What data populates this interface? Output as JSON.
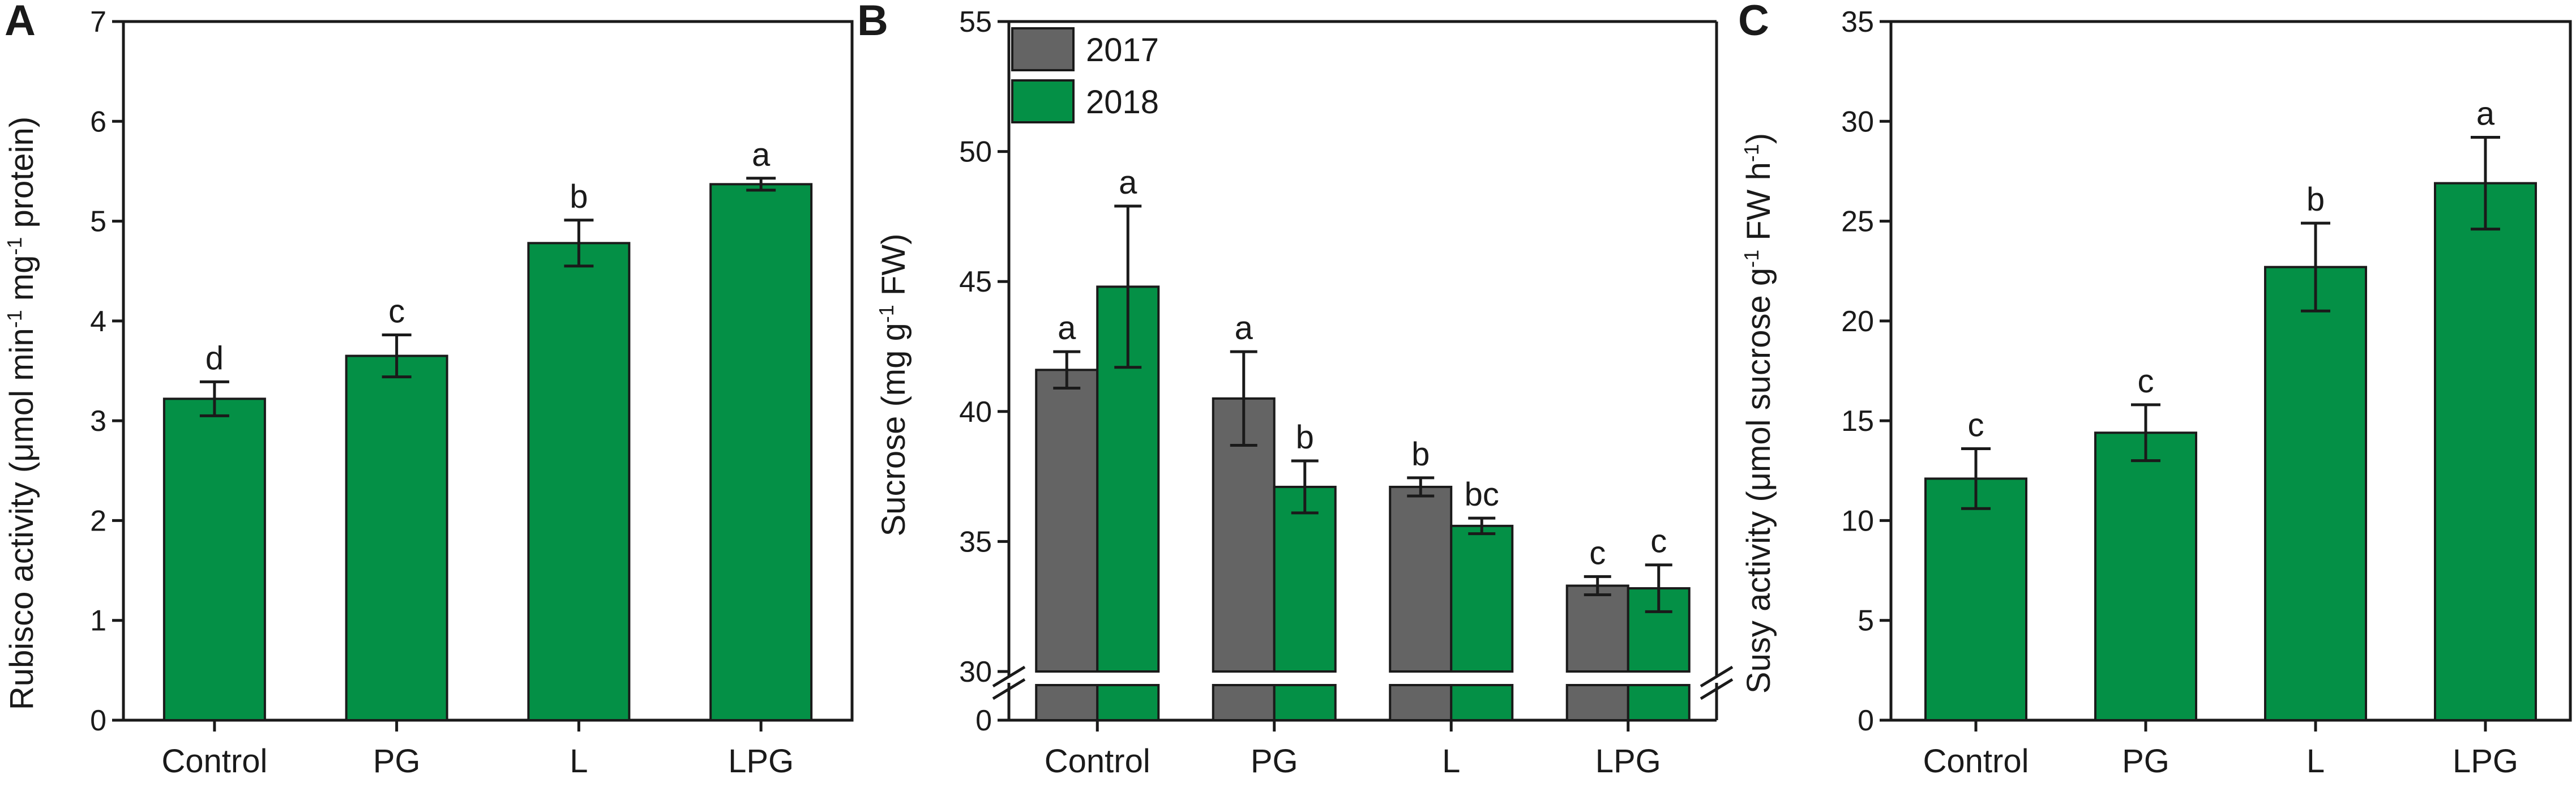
{
  "colors": {
    "green": "#049046",
    "grey": "#646464",
    "axis": "#1a1a1a"
  },
  "chart_data": [
    {
      "panel": "A",
      "type": "bar",
      "categories": [
        "Control",
        "PG",
        "L",
        "LPG"
      ],
      "values": [
        3.22,
        3.65,
        4.78,
        5.37
      ],
      "errors": [
        0.17,
        0.21,
        0.23,
        0.06
      ],
      "letters": [
        "d",
        "c",
        "b",
        "a"
      ],
      "ylabel_main": "Rubisco activity (μmol min",
      "ylabel_sup1": "-1",
      "ylabel_mid": " mg",
      "ylabel_sup2": "-1",
      "ylabel_end": " protein)",
      "ylim": [
        0,
        7
      ],
      "yticks": [
        0,
        1,
        2,
        3,
        4,
        5,
        6,
        7
      ]
    },
    {
      "panel": "B",
      "type": "bar",
      "categories": [
        "Control",
        "PG",
        "L",
        "LPG"
      ],
      "series": [
        {
          "name": "2017",
          "values": [
            41.6,
            40.5,
            37.1,
            33.3
          ],
          "errors": [
            0.7,
            1.8,
            0.35,
            0.35
          ],
          "letters": [
            "a",
            "a",
            "b",
            "c"
          ]
        },
        {
          "name": "2018",
          "values": [
            44.8,
            37.1,
            35.6,
            33.2
          ],
          "errors": [
            3.1,
            1.0,
            0.3,
            0.9
          ],
          "letters": [
            "a",
            "b",
            "bc",
            "c"
          ]
        }
      ],
      "ylabel_main": "Sucrose (mg g",
      "ylabel_sup1": "-1",
      "ylabel_end": " FW)",
      "ylim": [
        30,
        55
      ],
      "yticks": [
        30,
        35,
        40,
        45,
        50,
        55
      ],
      "axis_break": [
        0,
        30
      ],
      "break_tick": "0"
    },
    {
      "panel": "C",
      "type": "bar",
      "categories": [
        "Control",
        "PG",
        "L",
        "LPG"
      ],
      "values": [
        12.1,
        14.4,
        22.7,
        26.9
      ],
      "errors": [
        1.5,
        1.4,
        2.2,
        2.3
      ],
      "letters": [
        "c",
        "c",
        "b",
        "a"
      ],
      "ylabel_main": "Susy activity (μmol sucrose g",
      "ylabel_sup1": "-1",
      "ylabel_mid": " FW h",
      "ylabel_sup2": "-1",
      "ylabel_end": ")",
      "ylim": [
        0,
        35
      ],
      "yticks": [
        0,
        5,
        10,
        15,
        20,
        25,
        30,
        35
      ]
    }
  ]
}
